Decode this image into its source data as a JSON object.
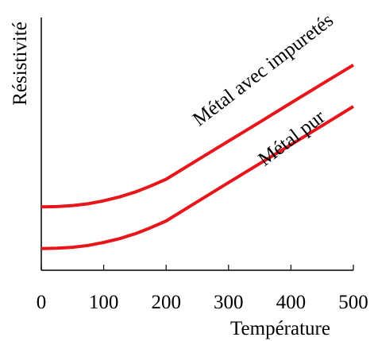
{
  "chart_data": {
    "type": "line",
    "xlabel": "Température",
    "ylabel": "Résistivité",
    "xlim": [
      0,
      500
    ],
    "ylim": [
      0,
      10
    ],
    "xticks": [
      "0",
      "100",
      "200",
      "300",
      "400",
      "500"
    ],
    "y_tick_labels": false,
    "grid": false,
    "legend": "none",
    "series": [
      {
        "name": "Métal avec impuretés",
        "color": "#e8161b",
        "x": [
          0,
          25,
          50,
          75,
          100,
          125,
          150,
          175,
          200,
          250,
          300,
          350,
          400,
          450,
          500
        ],
        "y": [
          2.51,
          2.52,
          2.56,
          2.63,
          2.75,
          2.9,
          3.09,
          3.33,
          3.6,
          4.36,
          5.11,
          5.86,
          6.62,
          7.37,
          8.12
        ]
      },
      {
        "name": "Métal pur",
        "color": "#e8161b",
        "x": [
          0,
          25,
          50,
          75,
          100,
          125,
          150,
          175,
          200,
          250,
          300,
          350,
          400,
          450,
          500
        ],
        "y": [
          0.86,
          0.87,
          0.91,
          0.98,
          1.1,
          1.25,
          1.44,
          1.68,
          1.95,
          2.71,
          3.47,
          4.22,
          4.97,
          5.72,
          6.48
        ]
      }
    ]
  }
}
